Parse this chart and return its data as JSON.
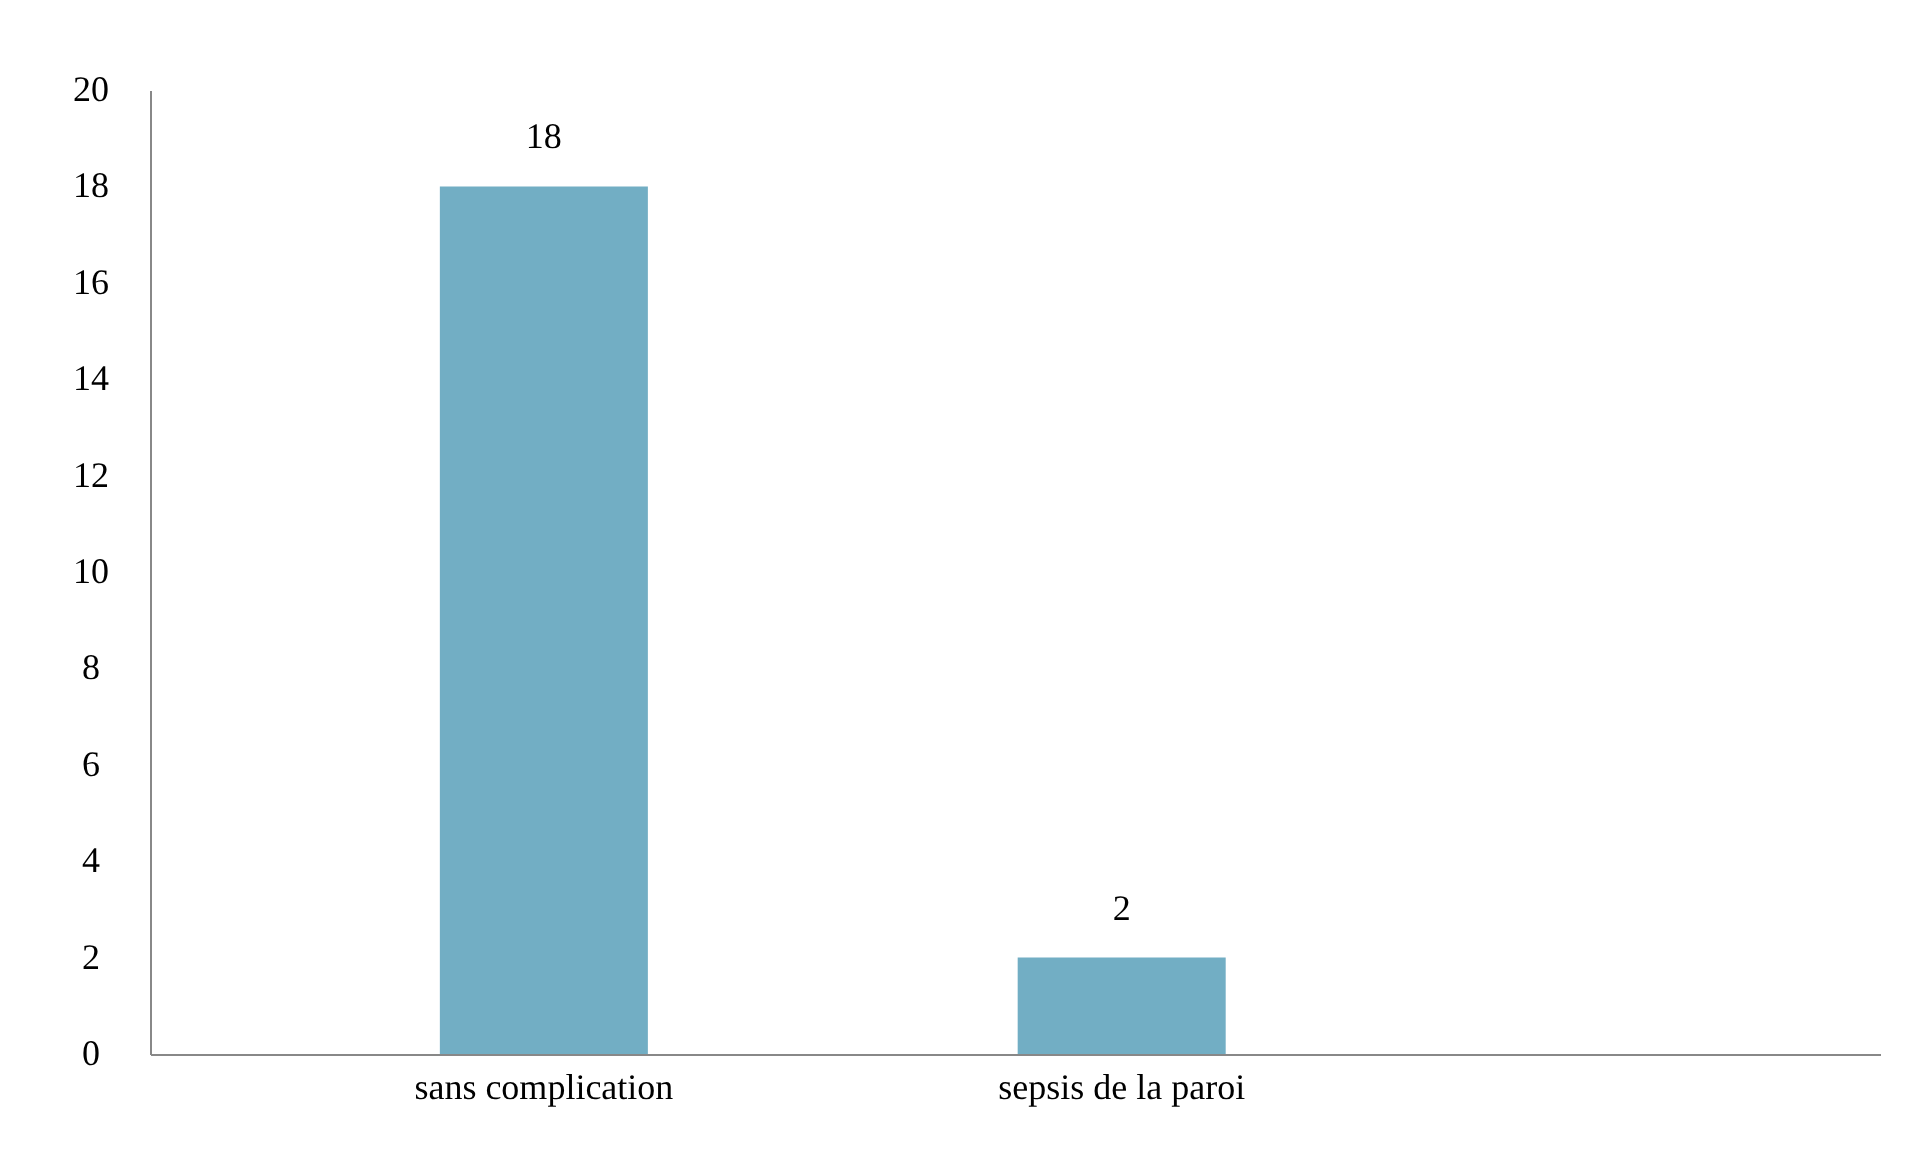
{
  "chart_data": {
    "type": "bar",
    "categories": [
      "sans complication",
      "sepsis de la paroi"
    ],
    "values": [
      18,
      2
    ],
    "color": "#72aec4",
    "ylim": [
      0,
      20
    ],
    "yticks": [
      0,
      2,
      4,
      6,
      8,
      10,
      12,
      14,
      16,
      18,
      20
    ],
    "data_labels": true
  }
}
